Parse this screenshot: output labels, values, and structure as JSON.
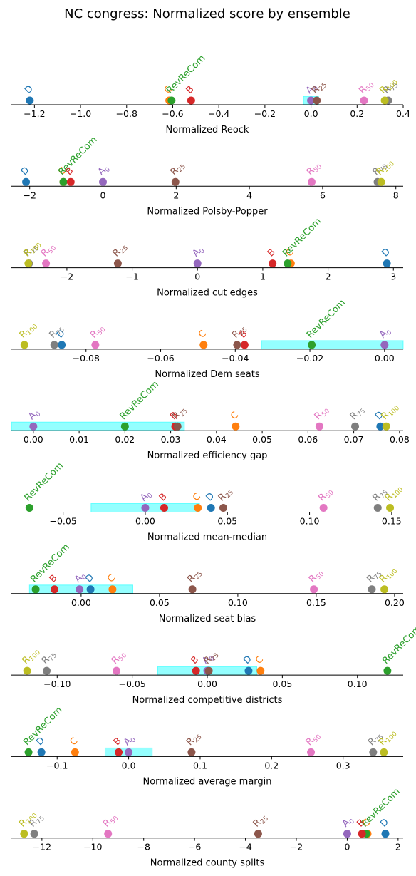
{
  "chart_data": {
    "type": "scatter",
    "title": "NC congress: Normalized score by ensemble",
    "ensembles": [
      {
        "key": "D",
        "label": "D",
        "sub": "",
        "color": "#1f77b4"
      },
      {
        "key": "C",
        "label": "C",
        "sub": "",
        "color": "#ff7f0e"
      },
      {
        "key": "RevReCom",
        "label": "RevReCom",
        "sub": "",
        "color": "#2ca02c"
      },
      {
        "key": "B",
        "label": "B",
        "sub": "",
        "color": "#d62728"
      },
      {
        "key": "A0",
        "label": "A",
        "sub": "0",
        "color": "#9467bd"
      },
      {
        "key": "R25",
        "label": "R",
        "sub": "25",
        "color": "#8c564b"
      },
      {
        "key": "R50",
        "label": "R",
        "sub": "50",
        "color": "#e377c2"
      },
      {
        "key": "R75",
        "label": "R",
        "sub": "75",
        "color": "#7f7f7f"
      },
      {
        "key": "R100",
        "label": "R",
        "sub": "100",
        "color": "#bcbd22"
      }
    ],
    "band_color": "#00ffff",
    "panels": [
      {
        "xlabel": "Normalized Reock",
        "xlim": [
          -1.3,
          0.4
        ],
        "ticks": [
          -1.2,
          -1.0,
          -0.8,
          -0.6,
          -0.4,
          -0.2,
          0.0,
          0.2,
          0.4
        ],
        "tick_labels": [
          "−1.2",
          "−1.0",
          "−0.8",
          "−0.6",
          "−0.4",
          "−0.2",
          "0.0",
          "0.2",
          "0.4"
        ],
        "band": [
          -0.033,
          0.033
        ],
        "values": {
          "D": -1.22,
          "C": -0.615,
          "RevReCom": -0.605,
          "B": -0.52,
          "A0": 0.0,
          "R25": 0.025,
          "R50": 0.23,
          "R75": 0.335,
          "R100": 0.32
        }
      },
      {
        "xlabel": "Normalized Polsby-Popper",
        "xlim": [
          -2.5,
          8.2
        ],
        "ticks": [
          -2,
          0,
          2,
          4,
          6,
          8
        ],
        "tick_labels": [
          "−2",
          "0",
          "2",
          "4",
          "6",
          "8"
        ],
        "band": null,
        "values": {
          "D": -2.1,
          "C": -1.08,
          "RevReCom": -1.08,
          "B": -0.88,
          "A0": 0.0,
          "R25": 1.98,
          "R50": 5.7,
          "R75": 7.5,
          "R100": 7.6
        }
      },
      {
        "xlabel": "Normalized cut edges",
        "xlim": [
          -2.85,
          3.15
        ],
        "ticks": [
          -2,
          -1,
          0,
          1,
          2,
          3
        ],
        "tick_labels": [
          "−2",
          "−1",
          "0",
          "1",
          "2",
          "3"
        ],
        "band": null,
        "values": {
          "D": 2.9,
          "C": 1.43,
          "RevReCom": 1.38,
          "B": 1.15,
          "A0": 0.0,
          "R25": -1.22,
          "R50": -2.32,
          "R75": -2.58,
          "R100": -2.59
        }
      },
      {
        "xlabel": "Normalized Dem seats",
        "xlim": [
          -0.1,
          0.005
        ],
        "ticks": [
          -0.08,
          -0.06,
          -0.04,
          -0.02,
          0.0
        ],
        "tick_labels": [
          "−0.08",
          "−0.06",
          "−0.04",
          "−0.02",
          "0.00"
        ],
        "band": [
          -0.033,
          0.033
        ],
        "values": {
          "D": -0.0865,
          "C": -0.0485,
          "RevReCom": -0.0195,
          "B": -0.0375,
          "A0": 0.0,
          "R25": -0.0395,
          "R50": -0.0775,
          "R75": -0.0885,
          "R100": -0.0965
        }
      },
      {
        "xlabel": "Normalized efficiency gap",
        "xlim": [
          -0.0048,
          0.0808
        ],
        "ticks": [
          0.0,
          0.01,
          0.02,
          0.03,
          0.04,
          0.05,
          0.06,
          0.07,
          0.08
        ],
        "tick_labels": [
          "0.00",
          "0.01",
          "0.02",
          "0.03",
          "0.04",
          "0.05",
          "0.06",
          "0.07",
          "0.08"
        ],
        "band": [
          -0.033,
          0.033
        ],
        "values": {
          "D": 0.0758,
          "C": 0.0442,
          "RevReCom": 0.02,
          "B": 0.031,
          "A0": 0.0,
          "R25": 0.0315,
          "R50": 0.0625,
          "R75": 0.0703,
          "R100": 0.0771
        }
      },
      {
        "xlabel": "Normalized mean-median",
        "xlim": [
          -0.0815,
          0.157
        ],
        "ticks": [
          -0.05,
          0.0,
          0.05,
          0.1,
          0.15
        ],
        "tick_labels": [
          "−0.05",
          "0.00",
          "0.05",
          "0.10",
          "0.15"
        ],
        "band": [
          -0.033,
          0.033
        ],
        "values": {
          "D": 0.04,
          "C": 0.032,
          "RevReCom": -0.0705,
          "B": 0.0115,
          "A0": 0.0,
          "R25": 0.0475,
          "R50": 0.1085,
          "R75": 0.1415,
          "R100": 0.149
        }
      },
      {
        "xlabel": "Normalized seat bias",
        "xlim": [
          -0.0445,
          0.2055
        ],
        "ticks": [
          0.0,
          0.05,
          0.1,
          0.15,
          0.2
        ],
        "tick_labels": [
          "0.00",
          "0.05",
          "0.10",
          "0.15",
          "0.20"
        ],
        "band": [
          -0.033,
          0.033
        ],
        "values": {
          "D": 0.006,
          "C": 0.02,
          "RevReCom": -0.029,
          "B": -0.017,
          "A0": -0.001,
          "R25": 0.071,
          "R50": 0.1485,
          "R75": 0.1855,
          "R100": 0.1935
        }
      },
      {
        "xlabel": "Normalized competitive districts",
        "xlim": [
          -0.1305,
          0.1305
        ],
        "ticks": [
          -0.1,
          -0.05,
          0.0,
          0.05,
          0.1
        ],
        "tick_labels": [
          "−0.10",
          "−0.05",
          "0.00",
          "0.05",
          "0.10"
        ],
        "band": [
          -0.033,
          0.033
        ],
        "values": {
          "D": 0.0275,
          "C": 0.0355,
          "RevReCom": 0.12,
          "B": -0.0075,
          "A0": 0.0,
          "R25": 0.001,
          "R50": -0.0605,
          "R75": -0.107,
          "R100": -0.12
        }
      },
      {
        "xlabel": "Normalized average margin",
        "xlim": [
          -0.164,
          0.384
        ],
        "ticks": [
          -0.1,
          0.0,
          0.1,
          0.2,
          0.3
        ],
        "tick_labels": [
          "−0.1",
          "0.0",
          "0.1",
          "0.2",
          "0.3"
        ],
        "band": [
          -0.033,
          0.033
        ],
        "values": {
          "D": -0.122,
          "C": -0.075,
          "RevReCom": -0.14,
          "B": -0.014,
          "A0": 0.0,
          "R25": 0.088,
          "R50": 0.255,
          "R75": 0.342,
          "R100": 0.357
        }
      },
      {
        "xlabel": "Normalized county splits",
        "xlim": [
          -13.2,
          2.2
        ],
        "ticks": [
          -12,
          -10,
          -8,
          -6,
          -4,
          -2,
          0,
          2
        ],
        "tick_labels": [
          "−12",
          "−10",
          "−8",
          "−6",
          "−4",
          "−2",
          "0",
          "2"
        ],
        "band": null,
        "values": {
          "D": 1.5,
          "C": 0.8,
          "RevReCom": 0.75,
          "B": 0.58,
          "A0": 0.0,
          "R25": -3.5,
          "R50": -9.4,
          "R75": -12.3,
          "R100": -12.7
        }
      }
    ]
  }
}
